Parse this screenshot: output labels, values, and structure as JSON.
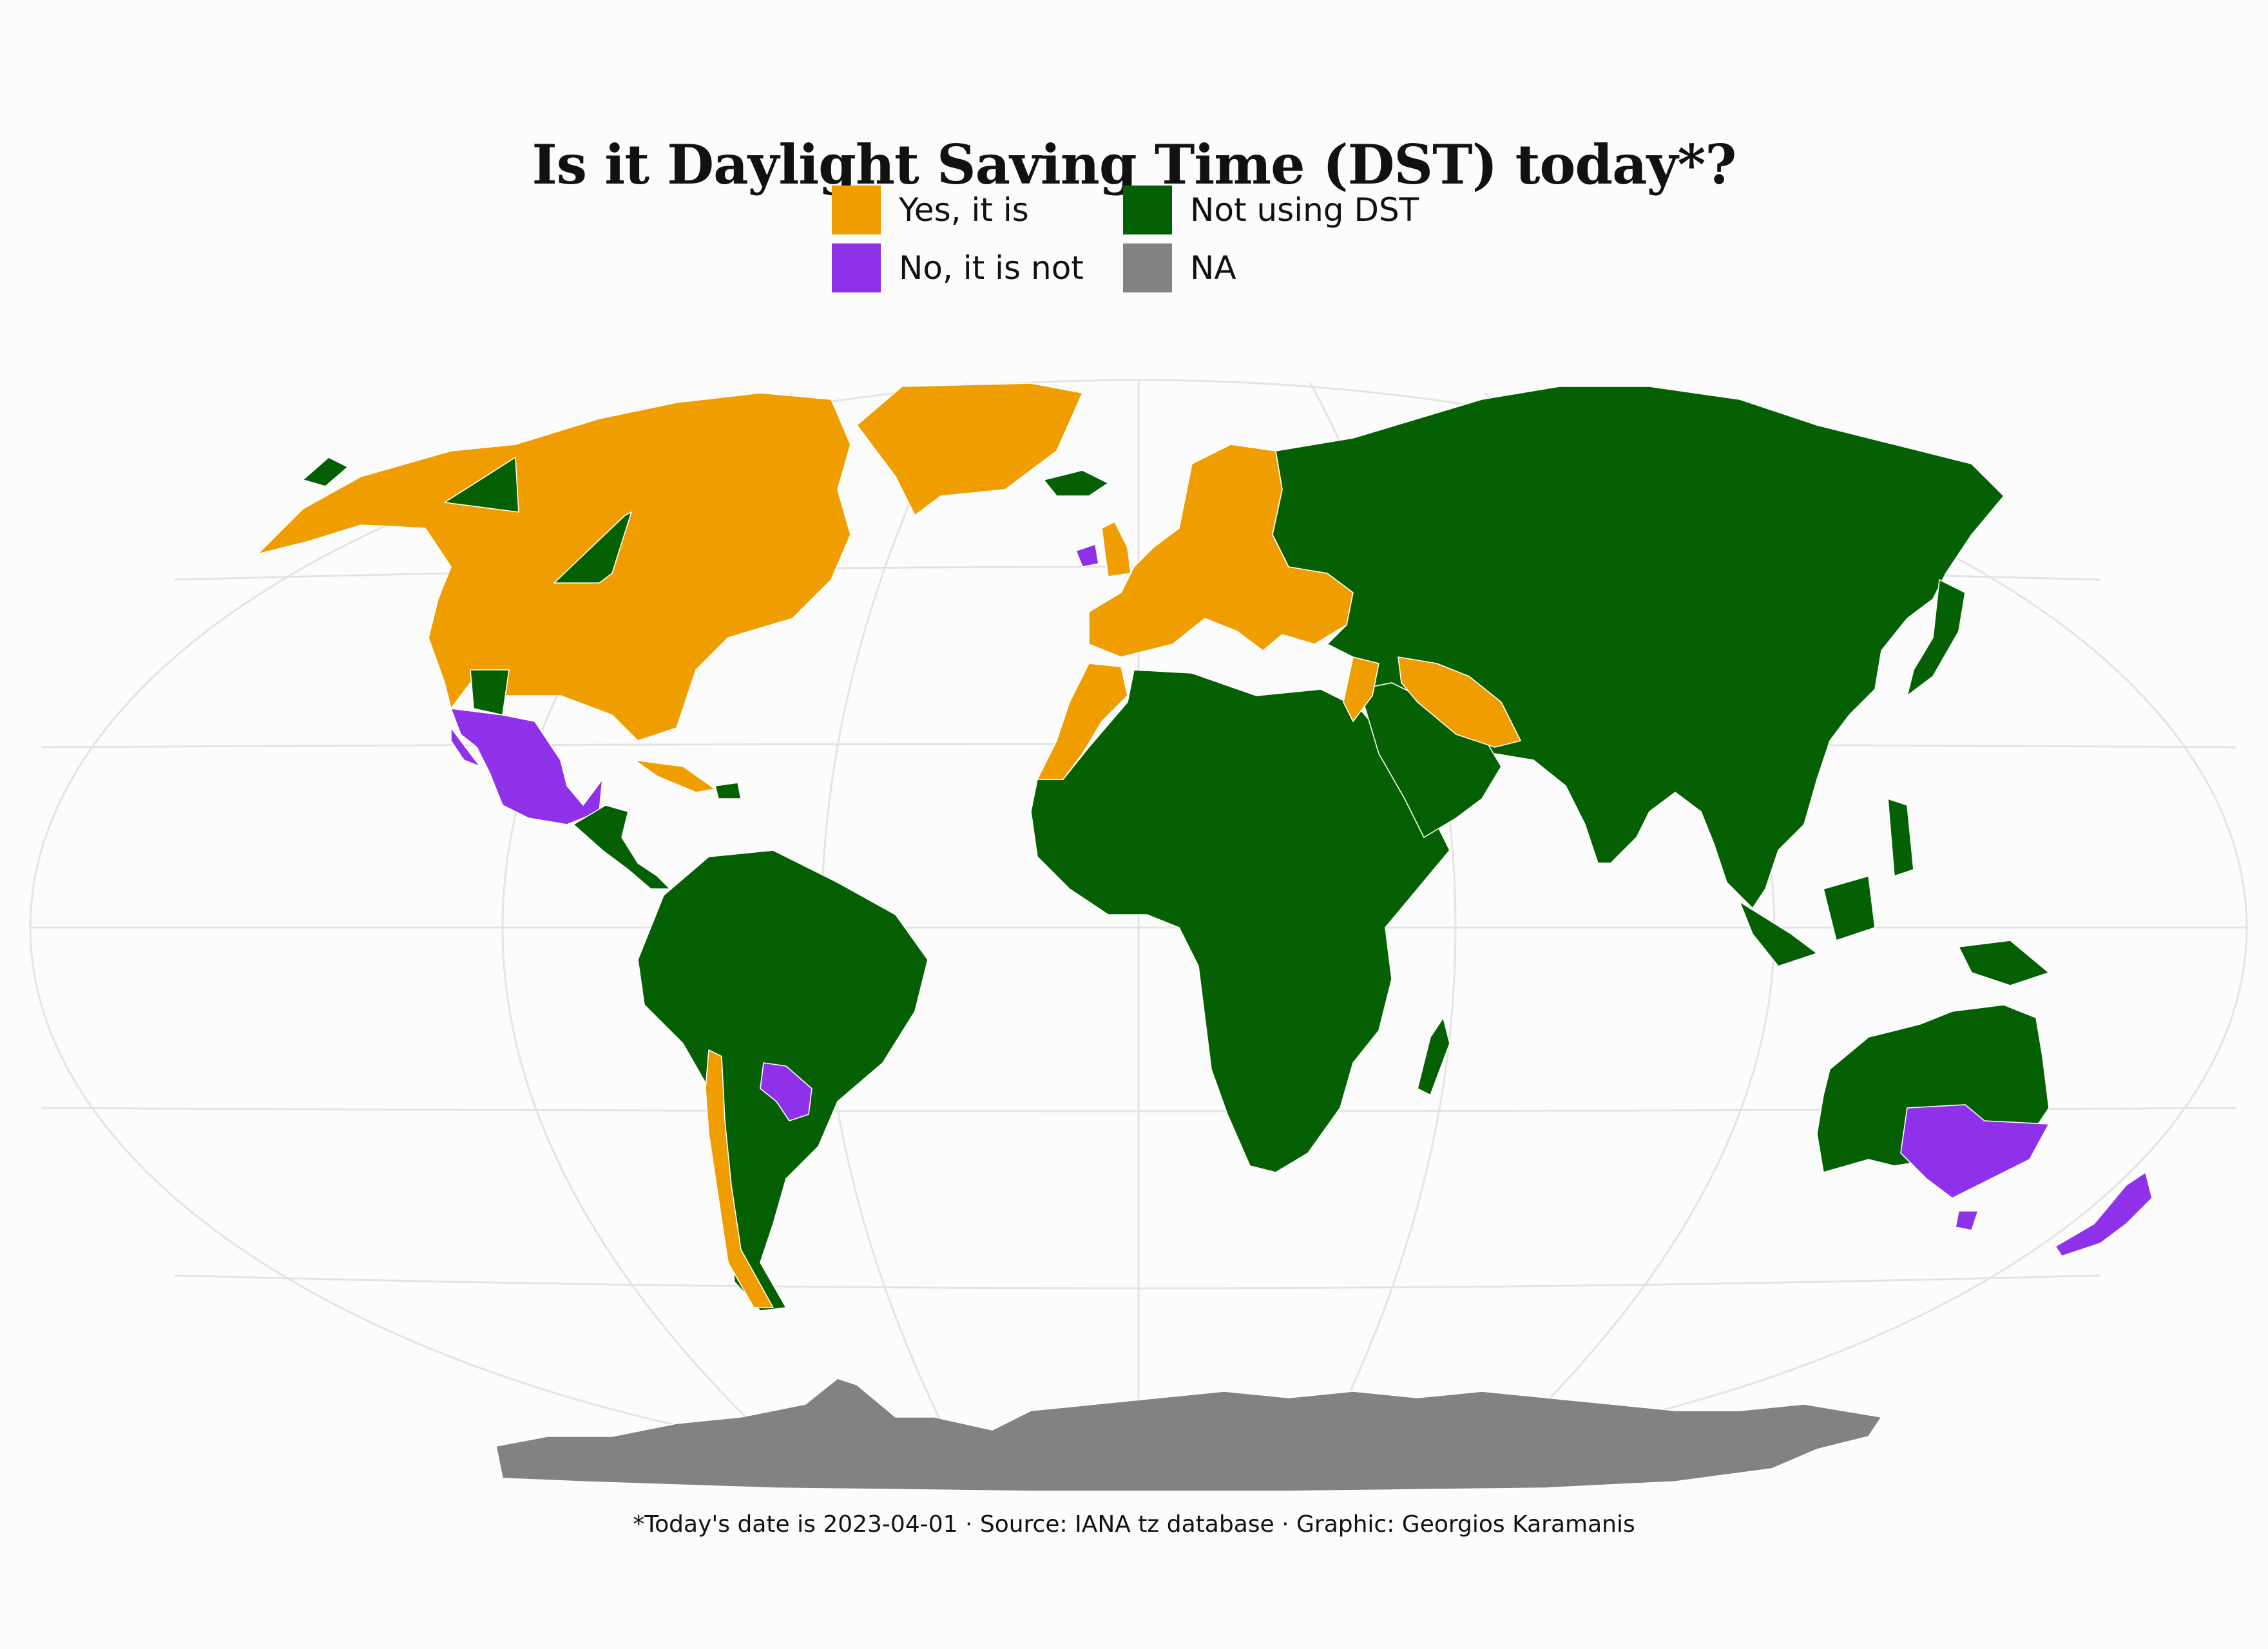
{
  "title": "Is it Daylight Saving Time (DST) today*?",
  "legend": [
    {
      "key": "yes",
      "label": "Yes, it is",
      "color": "#f09d00"
    },
    {
      "key": "no",
      "label": "No, it is not",
      "color": "#9031ea"
    },
    {
      "key": "notusing",
      "label": "Not using DST",
      "color": "#046003"
    },
    {
      "key": "na",
      "label": "NA",
      "color": "#828282"
    }
  ],
  "caption": "*Today's date is 2023-04-01 · Source: IANA tz database · Graphic: Georgios Karamanis",
  "colors": {
    "yes": "#f09d00",
    "no": "#9031ea",
    "notusing": "#046003",
    "na": "#828282",
    "graticule": "#e4e4e4",
    "border": "#ffffff"
  }
}
